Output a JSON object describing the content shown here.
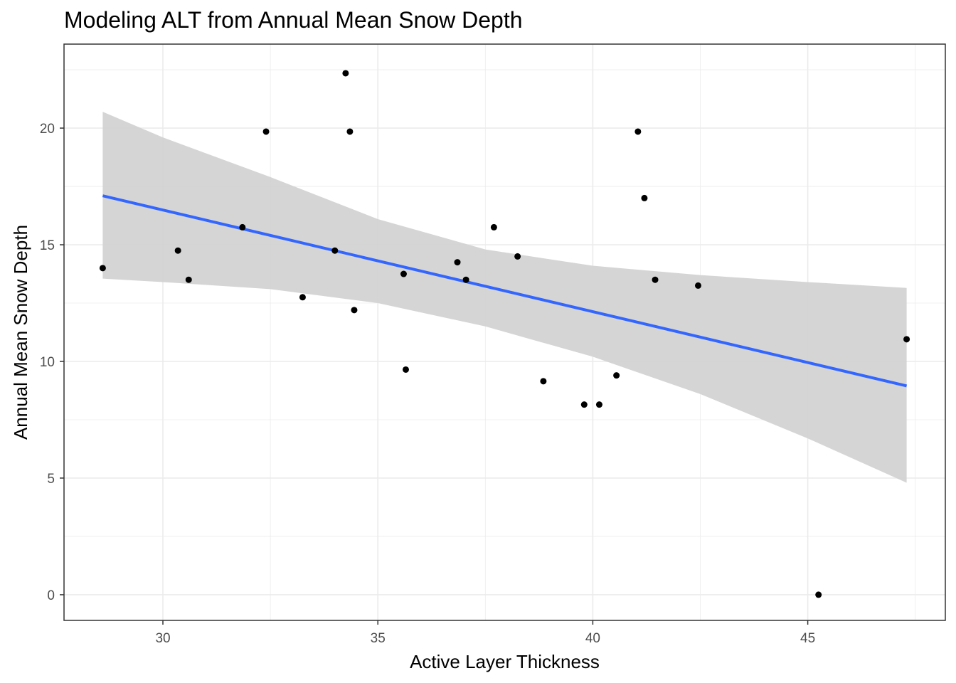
{
  "chart_data": {
    "type": "scatter",
    "title": "Modeling ALT from Annual Mean Snow Depth",
    "xlabel": "Active Layer Thickness",
    "ylabel": "Annual Mean Snow Depth",
    "xlim": [
      27.7,
      48.2
    ],
    "ylim": [
      -1.1,
      23.6
    ],
    "x_ticks": [
      30,
      35,
      40,
      45
    ],
    "y_ticks": [
      0,
      5,
      10,
      15,
      20
    ],
    "grid": true,
    "legend": "none",
    "colors": {
      "points": "#000000",
      "fit_line": "#3366ff",
      "confidence_band": "#d3d3d3",
      "grid": "#ebebeb",
      "panel_border": "#333333"
    },
    "points": [
      {
        "x": 28.6,
        "y": 14.0
      },
      {
        "x": 30.35,
        "y": 14.75
      },
      {
        "x": 30.6,
        "y": 13.5
      },
      {
        "x": 31.85,
        "y": 15.75
      },
      {
        "x": 32.4,
        "y": 19.85
      },
      {
        "x": 33.25,
        "y": 12.75
      },
      {
        "x": 34.0,
        "y": 14.75
      },
      {
        "x": 34.25,
        "y": 22.35
      },
      {
        "x": 34.35,
        "y": 19.85
      },
      {
        "x": 34.45,
        "y": 12.2
      },
      {
        "x": 35.6,
        "y": 13.75
      },
      {
        "x": 35.65,
        "y": 9.65
      },
      {
        "x": 36.85,
        "y": 14.25
      },
      {
        "x": 37.05,
        "y": 13.5
      },
      {
        "x": 37.7,
        "y": 15.75
      },
      {
        "x": 38.25,
        "y": 14.5
      },
      {
        "x": 38.85,
        "y": 9.15
      },
      {
        "x": 39.8,
        "y": 8.15
      },
      {
        "x": 40.15,
        "y": 8.15
      },
      {
        "x": 40.55,
        "y": 9.4
      },
      {
        "x": 41.05,
        "y": 19.85
      },
      {
        "x": 41.2,
        "y": 17.0
      },
      {
        "x": 41.45,
        "y": 13.5
      },
      {
        "x": 42.45,
        "y": 13.25
      },
      {
        "x": 45.25,
        "y": 0.0
      },
      {
        "x": 47.3,
        "y": 10.95
      }
    ],
    "fit": {
      "method": "linear",
      "x": [
        28.6,
        47.3
      ],
      "y": [
        17.1,
        8.95
      ]
    },
    "confidence_band": {
      "x": [
        28.6,
        30.0,
        32.5,
        35.0,
        37.5,
        40.0,
        42.5,
        45.0,
        47.3
      ],
      "lower": [
        13.55,
        13.4,
        13.1,
        12.5,
        11.5,
        10.2,
        8.6,
        6.7,
        4.8
      ],
      "upper": [
        20.7,
        19.6,
        17.9,
        16.1,
        14.8,
        14.1,
        13.7,
        13.4,
        13.15
      ]
    }
  }
}
